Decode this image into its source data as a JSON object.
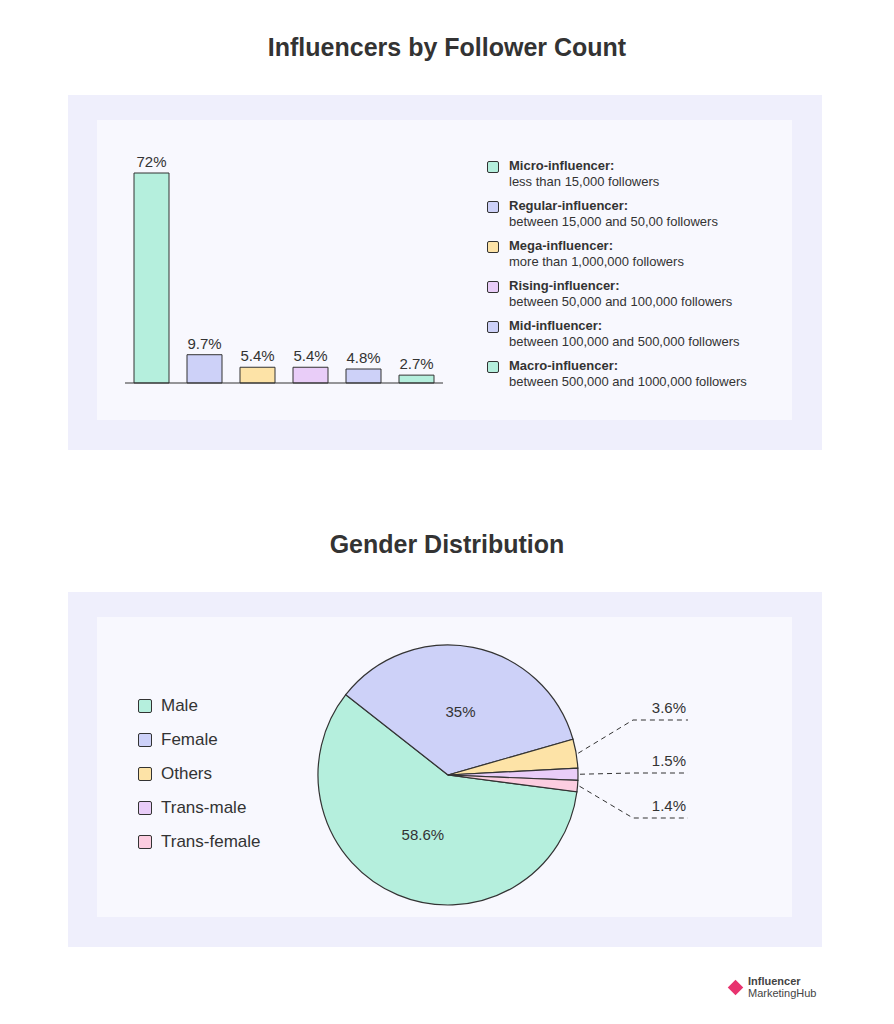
{
  "chart_data": [
    {
      "type": "bar",
      "title": "Influencers by Follower Count",
      "categories": [
        "Micro-influencer:",
        "Regular-influencer:",
        "Mega-influencer:",
        "Rising-influencer:",
        "Mid-influencer:",
        "Macro-influencer:"
      ],
      "descriptions": [
        "less than 15,000 followers",
        "between 15,000 and 50,00 followers",
        "more than 1,000,000 followers",
        "between 50,000 and 100,000 followers",
        "between 100,000 and 500,000 followers",
        "between 500,000 and 1000,000 followers"
      ],
      "values": [
        72,
        9.7,
        5.4,
        5.4,
        4.8,
        2.7
      ],
      "value_labels": [
        "72%",
        "9.7%",
        "5.4%",
        "5.4%",
        "4.8%",
        "2.7%"
      ],
      "colors": [
        "#b5efdd",
        "#cdd1f8",
        "#fde3a7",
        "#e9cdf8",
        "#cdd1f8",
        "#b5efdd"
      ],
      "data_labels": true,
      "tick_labels": false,
      "legend": "right"
    },
    {
      "type": "pie",
      "title": "Gender Distribution",
      "categories": [
        "Male",
        "Female",
        "Others",
        "Trans-male",
        "Trans-female"
      ],
      "values": [
        58.6,
        35,
        3.6,
        1.5,
        1.4
      ],
      "value_labels": [
        "58.6%",
        "35%",
        "3.6%",
        "1.5%",
        "1.4%"
      ],
      "colors": [
        "#b5efdd",
        "#cdd1f8",
        "#fde3a7",
        "#e9cdf8",
        "#fccde0"
      ],
      "data_labels": true,
      "legend": "left"
    }
  ],
  "logo": [
    "Influencer",
    "MarketingHub"
  ]
}
